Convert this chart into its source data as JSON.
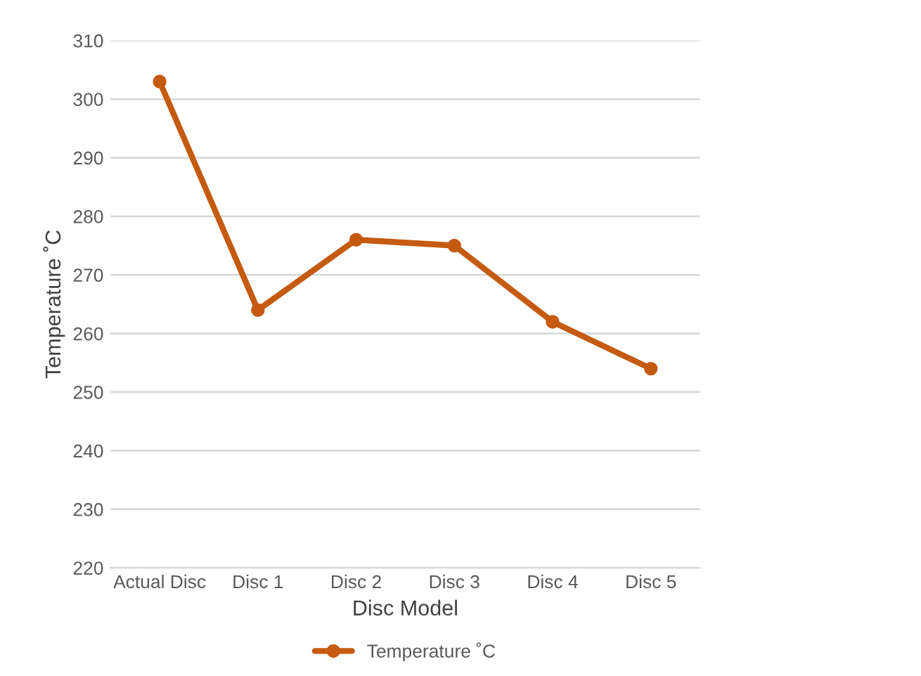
{
  "chart_data": {
    "type": "line",
    "xlabel": "Disc Model",
    "ylabel": "Temperature ˚C",
    "categories": [
      "Actual Disc",
      "Disc 1",
      "Disc 2",
      "Disc 3",
      "Disc 4",
      "Disc 5"
    ],
    "series": [
      {
        "name": "Temperature ˚C",
        "color": "#c55a11",
        "values": [
          303,
          264,
          276,
          275,
          262,
          254
        ]
      }
    ],
    "ylim": [
      220,
      310
    ],
    "yticks": [
      220,
      230,
      240,
      250,
      260,
      270,
      280,
      290,
      300,
      310
    ],
    "grid": "y",
    "legend": "bottom",
    "marker": "circle",
    "line_style": "solid"
  }
}
